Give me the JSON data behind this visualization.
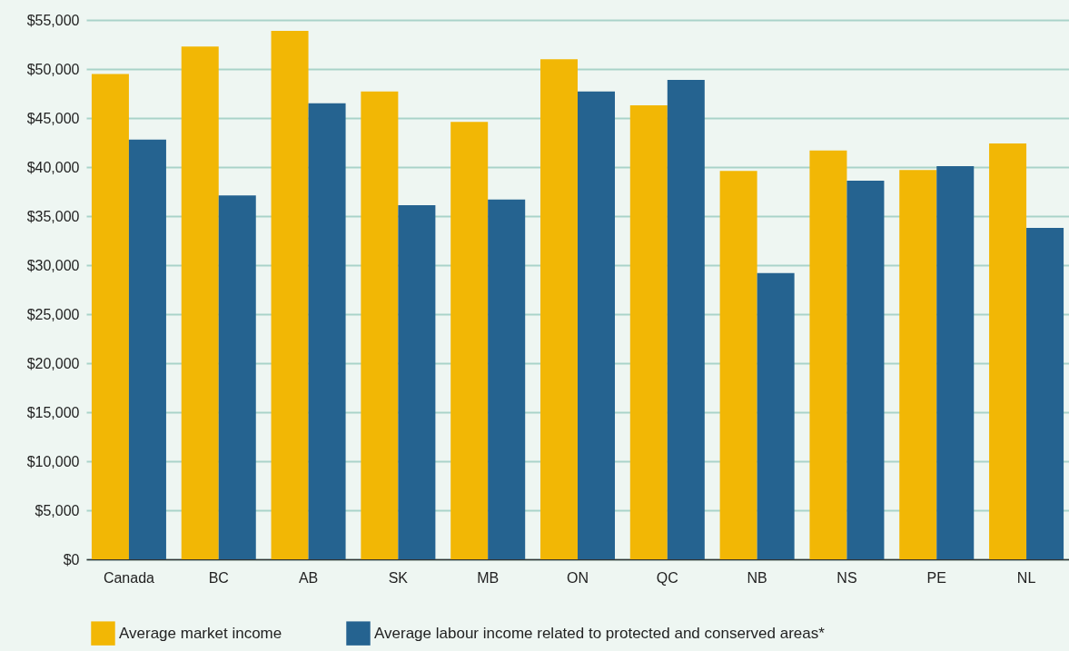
{
  "chart_data": {
    "type": "bar",
    "categories": [
      "Canada",
      "BC",
      "AB",
      "SK",
      "MB",
      "ON",
      "QC",
      "NB",
      "NS",
      "PE",
      "NL"
    ],
    "series": [
      {
        "name": "Average market income",
        "color": "#f2b705",
        "values": [
          49500,
          52300,
          53900,
          47700,
          44600,
          51000,
          46300,
          39600,
          41700,
          39700,
          42400
        ]
      },
      {
        "name": "Average labour income related to protected and conserved areas*",
        "color": "#256390",
        "values": [
          42800,
          37100,
          46500,
          36100,
          36700,
          47700,
          48900,
          29200,
          38600,
          40100,
          33800
        ]
      }
    ],
    "ylim": [
      0,
      55000
    ],
    "yticks": [
      {
        "value": 0,
        "label": "$0"
      },
      {
        "value": 5000,
        "label": "$5,000"
      },
      {
        "value": 10000,
        "label": "$10,000"
      },
      {
        "value": 15000,
        "label": "$15,000"
      },
      {
        "value": 20000,
        "label": "$20,000"
      },
      {
        "value": 25000,
        "label": "$25,000"
      },
      {
        "value": 30000,
        "label": "$30,000"
      },
      {
        "value": 35000,
        "label": "$35,000"
      },
      {
        "value": 40000,
        "label": "$40,000"
      },
      {
        "value": 45000,
        "label": "$45,000"
      },
      {
        "value": 50000,
        "label": "$50,000"
      },
      {
        "value": 55000,
        "label": "$55,000"
      }
    ],
    "grid": "y",
    "legend": "bottom"
  }
}
